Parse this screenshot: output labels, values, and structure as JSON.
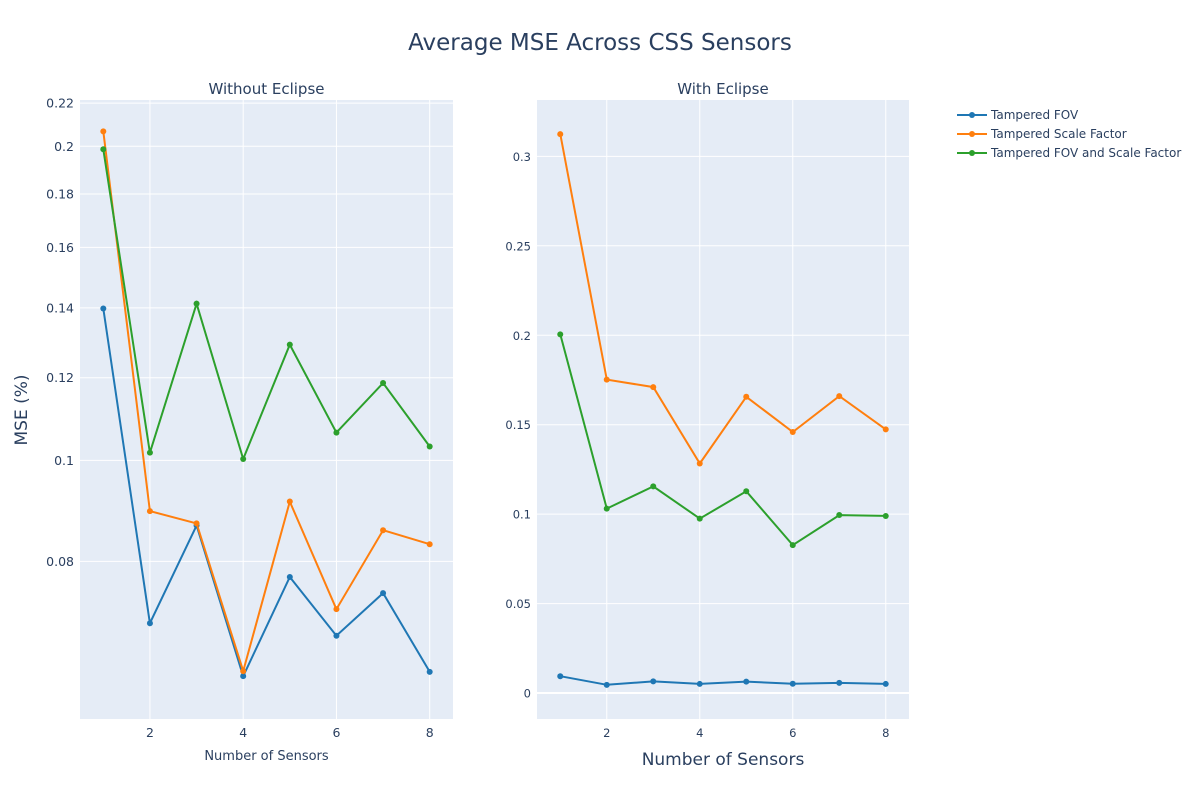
{
  "title": "Average MSE Across CSS Sensors",
  "ylabel": "MSE (%)",
  "legend": {
    "placement": "top-right",
    "items": [
      {
        "label": "Tampered FOV",
        "color": "#1f77b4"
      },
      {
        "label": "Tampered Scale Factor",
        "color": "#ff7f0e"
      },
      {
        "label": "Tampered FOV and Scale Factor",
        "color": "#2ca02c"
      }
    ]
  },
  "chart_data": [
    {
      "type": "line",
      "title": "Without Eclipse",
      "xlabel": "Number of Sensors",
      "ylabel": "MSE (%)",
      "yscale": "log",
      "x": [
        1,
        2,
        3,
        4,
        5,
        6,
        7,
        8
      ],
      "xticks": [
        2,
        4,
        6,
        8
      ],
      "yticks": [
        0.08,
        0.1,
        0.12,
        0.14,
        0.16,
        0.18,
        0.2,
        0.22
      ],
      "yticklabels": [
        "0.08",
        "0.1",
        "0.12",
        "0.14",
        "0.16",
        "0.18",
        "0.2",
        "0.22"
      ],
      "xlim": [
        0.5,
        8.5
      ],
      "ylim": [
        0.0565,
        0.2215
      ],
      "grid": true,
      "series": [
        {
          "name": "Tampered FOV",
          "color": "#1f77b4",
          "values": [
            0.1398,
            0.0698,
            0.0866,
            0.0621,
            0.0773,
            0.0679,
            0.0746,
            0.0627
          ]
        },
        {
          "name": "Tampered Scale Factor",
          "color": "#ff7f0e",
          "values": [
            0.2067,
            0.0894,
            0.087,
            0.0628,
            0.0913,
            0.072,
            0.0857,
            0.0831
          ]
        },
        {
          "name": "Tampered FOV and Scale Factor",
          "color": "#2ca02c",
          "values": [
            0.1987,
            0.1017,
            0.1413,
            0.1003,
            0.1291,
            0.1063,
            0.1186,
            0.1031
          ]
        }
      ]
    },
    {
      "type": "line",
      "title": "With Eclipse",
      "xlabel": "Number of Sensors",
      "ylabel": "",
      "yscale": "linear",
      "x": [
        1,
        2,
        3,
        4,
        5,
        6,
        7,
        8
      ],
      "xticks": [
        2,
        4,
        6,
        8
      ],
      "yticks": [
        0,
        0.05,
        0.1,
        0.15,
        0.2,
        0.25,
        0.3
      ],
      "yticklabels": [
        "0",
        "0.05",
        "0.1",
        "0.15",
        "0.2",
        "0.25",
        "0.3"
      ],
      "xlim": [
        0.5,
        8.5
      ],
      "ylim": [
        -0.0145,
        0.3315
      ],
      "grid": true,
      "series": [
        {
          "name": "Tampered FOV",
          "color": "#1f77b4",
          "values": [
            0.0094,
            0.0046,
            0.0065,
            0.0051,
            0.0064,
            0.0052,
            0.0057,
            0.0051
          ]
        },
        {
          "name": "Tampered Scale Factor",
          "color": "#ff7f0e",
          "values": [
            0.3124,
            0.1752,
            0.171,
            0.1283,
            0.1656,
            0.1459,
            0.166,
            0.1474
          ]
        },
        {
          "name": "Tampered FOV and Scale Factor",
          "color": "#2ca02c",
          "values": [
            0.2005,
            0.1031,
            0.1155,
            0.0975,
            0.1128,
            0.0827,
            0.0995,
            0.099
          ]
        }
      ]
    }
  ]
}
